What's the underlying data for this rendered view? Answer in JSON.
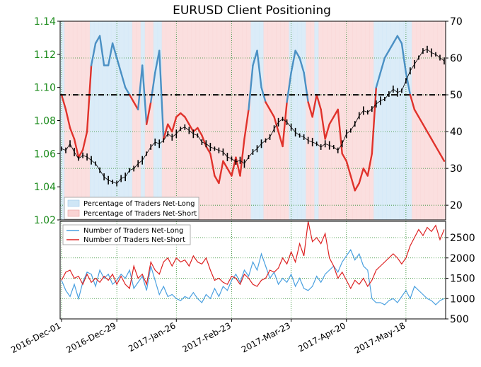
{
  "colors": {
    "price_line": "#000000",
    "net_long_band": "#cfe6f6",
    "net_short_band": "#f9d4d4",
    "pct_long_line": "#4a90c4",
    "pct_short_line": "#e0322b",
    "count_long_line": "#4aa0e0",
    "count_short_line": "#dd2222",
    "tick_green": "#1a8a1a",
    "grid": "#2a8a2a"
  },
  "chart_data": [
    {
      "type": "line",
      "title": "EURUSD Client Positioning",
      "x_ticks": [
        "2016-Dec-01",
        "2016-Dec-29",
        "2017-Jan-26",
        "2017-Feb-23",
        "2017-Mar-23",
        "2017-Apr-20",
        "2017-May-18"
      ],
      "y_left_ticks": [
        "1.02",
        "1.04",
        "1.06",
        "1.08",
        "1.10",
        "1.12",
        "1.14"
      ],
      "y_left_lim": [
        1.02,
        1.14
      ],
      "y_right_ticks": [
        "20",
        "30",
        "40",
        "50",
        "60",
        "70"
      ],
      "y_right_lim": [
        16,
        70
      ],
      "reference_line": 50,
      "grid": true,
      "legend_position": "bottom-left",
      "legend": [
        "Percentage of Traders Net-Long",
        "Percentage of Traders Net-Short"
      ],
      "price": [
        1.063,
        1.062,
        1.066,
        1.061,
        1.057,
        1.059,
        1.058,
        1.056,
        1.054,
        1.05,
        1.046,
        1.044,
        1.043,
        1.042,
        1.045,
        1.046,
        1.05,
        1.051,
        1.054,
        1.056,
        1.06,
        1.064,
        1.067,
        1.066,
        1.068,
        1.072,
        1.07,
        1.072,
        1.075,
        1.076,
        1.074,
        1.072,
        1.071,
        1.067,
        1.066,
        1.064,
        1.063,
        1.062,
        1.061,
        1.058,
        1.057,
        1.055,
        1.056,
        1.054,
        1.058,
        1.061,
        1.063,
        1.066,
        1.068,
        1.07,
        1.075,
        1.079,
        1.081,
        1.079,
        1.076,
        1.073,
        1.071,
        1.07,
        1.068,
        1.067,
        1.066,
        1.064,
        1.066,
        1.065,
        1.064,
        1.062,
        1.066,
        1.072,
        1.074,
        1.078,
        1.083,
        1.086,
        1.085,
        1.087,
        1.09,
        1.092,
        1.093,
        1.096,
        1.099,
        1.097,
        1.098,
        1.104,
        1.11,
        1.114,
        1.118,
        1.122,
        1.123,
        1.121,
        1.12,
        1.118,
        1.116
      ],
      "pct_net_long": [
        50,
        46,
        41,
        38,
        33,
        35,
        40,
        58,
        64,
        66,
        58,
        58,
        64,
        60,
        56,
        52,
        50,
        48,
        46,
        58,
        42,
        48,
        56,
        62,
        38,
        42,
        40,
        44,
        45,
        44,
        42,
        40,
        41,
        39,
        36,
        34,
        28,
        26,
        32,
        30,
        28,
        33,
        28,
        38,
        46,
        58,
        62,
        52,
        48,
        46,
        44,
        40,
        36,
        48,
        56,
        62,
        60,
        56,
        48,
        44,
        50,
        46,
        38,
        42,
        44,
        46,
        34,
        32,
        28,
        24,
        26,
        30,
        28,
        34,
        52,
        56,
        60,
        62,
        64,
        66,
        64,
        56,
        50,
        46,
        44,
        42,
        40,
        38,
        36,
        34,
        32
      ],
      "pct_net_short": [
        50,
        54,
        59,
        62,
        67,
        65,
        60,
        42,
        36,
        34,
        42,
        42,
        36,
        40,
        44,
        48,
        50,
        52,
        54,
        42,
        58,
        52,
        44,
        38,
        62,
        58,
        60,
        56,
        55,
        56,
        58,
        60,
        59,
        61,
        64,
        66,
        72,
        74,
        68,
        70,
        72,
        67,
        72,
        62,
        54,
        42,
        38,
        48,
        52,
        54,
        56,
        60,
        64,
        52,
        44,
        38,
        40,
        44,
        52,
        56,
        50,
        54,
        62,
        58,
        56,
        54,
        66,
        68,
        72,
        76,
        74,
        70,
        72,
        66,
        48,
        44,
        40,
        38,
        36,
        34,
        36,
        44,
        50,
        54,
        56,
        58,
        60,
        62,
        64,
        66,
        68
      ]
    },
    {
      "type": "line",
      "y_ticks": [
        "500",
        "1000",
        "1500",
        "2000",
        "2500"
      ],
      "y_lim": [
        500,
        2900
      ],
      "grid": true,
      "legend_position": "top-left",
      "legend": [
        "Number of Traders Net-Long",
        "Number of Traders Net-Short"
      ],
      "series": [
        {
          "name": "Number of Traders Net-Long",
          "values": [
            1450,
            1200,
            1050,
            1350,
            1000,
            1400,
            1650,
            1600,
            1300,
            1700,
            1500,
            1600,
            1350,
            1450,
            1600,
            1500,
            1700,
            1250,
            1400,
            1550,
            1200,
            1800,
            1450,
            1100,
            1300,
            1050,
            1100,
            1000,
            950,
            1050,
            1000,
            1150,
            1000,
            900,
            1100,
            1000,
            1250,
            1050,
            1300,
            1200,
            1450,
            1600,
            1400,
            1700,
            1550,
            1900,
            1700,
            2100,
            1800,
            1500,
            1650,
            1350,
            1500,
            1400,
            1600,
            1300,
            1500,
            1250,
            1200,
            1300,
            1550,
            1400,
            1600,
            1700,
            1800,
            1650,
            1900,
            2050,
            2200,
            1950,
            2100,
            1800,
            1700,
            1000,
            900,
            900,
            850,
            950,
            1000,
            900,
            1050,
            1200,
            1000,
            1300,
            1200,
            1100,
            1000,
            950,
            850,
            950,
            1000
          ]
        },
        {
          "name": "Number of Traders Net-Short",
          "values": [
            1450,
            1650,
            1700,
            1500,
            1550,
            1350,
            1600,
            1400,
            1500,
            1400,
            1550,
            1450,
            1600,
            1350,
            1550,
            1350,
            1250,
            1800,
            1500,
            1600,
            1350,
            1900,
            1700,
            1600,
            1900,
            2000,
            1800,
            2000,
            1900,
            1950,
            1800,
            2050,
            1900,
            1850,
            2000,
            1700,
            1450,
            1500,
            1400,
            1350,
            1550,
            1500,
            1350,
            1600,
            1500,
            1350,
            1300,
            1450,
            1500,
            1700,
            1650,
            1750,
            2000,
            1850,
            2150,
            1900,
            2350,
            2050,
            2900,
            2400,
            2500,
            2350,
            2600,
            2000,
            1800,
            1500,
            1650,
            1450,
            1250,
            1450,
            1350,
            1500,
            1300,
            1450,
            1700,
            1800,
            1900,
            2000,
            2100,
            2000,
            1850,
            2000,
            2300,
            2500,
            2700,
            2550,
            2750,
            2650,
            2800,
            2450,
            2700
          ]
        }
      ]
    }
  ]
}
